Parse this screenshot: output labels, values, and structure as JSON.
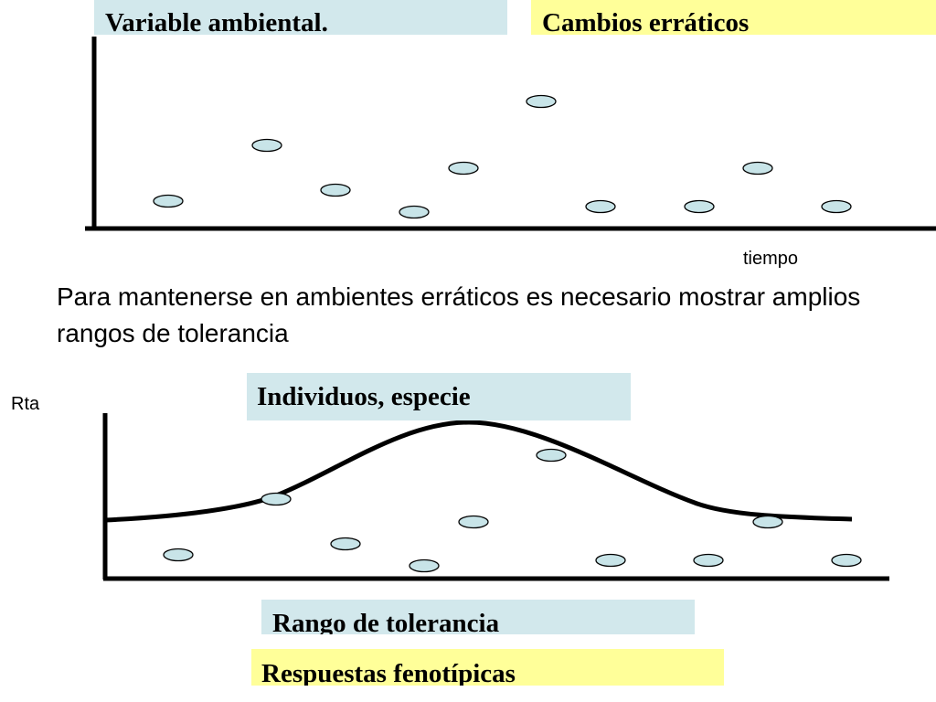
{
  "top_panel": {
    "label_left": "Variable ambiental.",
    "label_right": "Cambios erráticos",
    "x_axis_label": "tiempo",
    "point_color": "#c8e4e8"
  },
  "sentence": "Para mantenerse en ambientes erráticos es necesario mostrar amplios rangos de tolerancia",
  "bottom_panel": {
    "y_axis_label": "Rta",
    "curve_label": "Individuos, especie",
    "range_label": "Rango de tolerancia",
    "response_label": "Respuestas fenotípicas",
    "curve_type": "bell"
  },
  "colors": {
    "label_blue": "#d2e8ec",
    "label_yellow": "#ffff99",
    "point_fill": "#c8e4e8"
  }
}
